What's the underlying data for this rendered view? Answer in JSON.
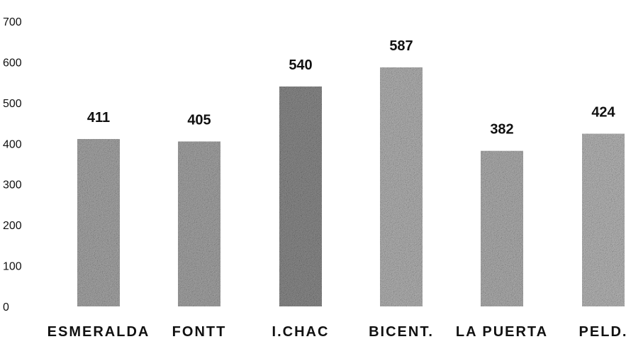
{
  "chart_data": {
    "type": "bar",
    "categories": [
      "ESMERALDA",
      "FONTT",
      "I.CHAC",
      "BICENT.",
      "LA PUERTA",
      "PELD."
    ],
    "values": [
      411,
      405,
      540,
      587,
      382,
      424
    ],
    "ylim": [
      0,
      700
    ],
    "yticks": [
      0,
      100,
      200,
      300,
      400,
      500,
      600,
      700
    ],
    "grid": false,
    "legend": "none",
    "bar_colors": [
      "#a8a8a8",
      "#a6a6a6",
      "#8c8c8c",
      "#b4b4b4",
      "#b0b0b0",
      "#b8b8b8"
    ],
    "data_labels": true
  }
}
